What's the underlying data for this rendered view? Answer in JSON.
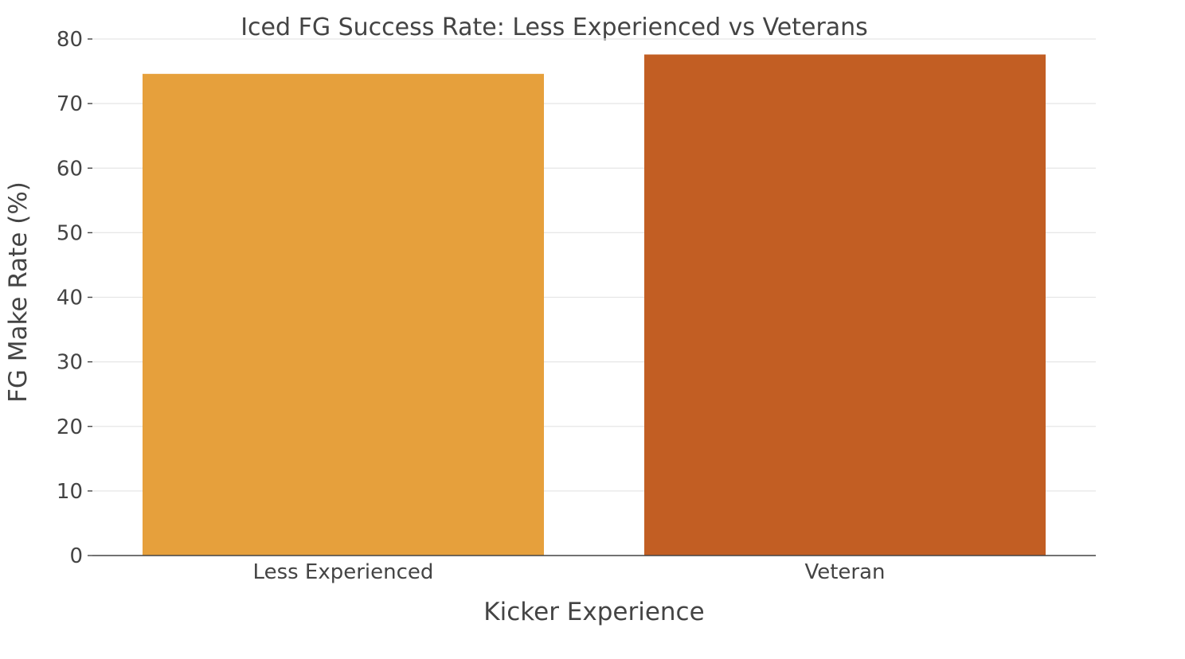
{
  "chart_data": {
    "type": "bar",
    "title": "Iced FG Success Rate: Less Experienced vs Veterans",
    "xlabel": "Kicker Experience",
    "ylabel": "FG Make Rate (%)",
    "categories": [
      "Less Experienced",
      "Veteran"
    ],
    "values": [
      74.6,
      77.6
    ],
    "colors": [
      "#E6A03C",
      "#C25E23"
    ],
    "ylim": [
      0,
      80
    ],
    "yticks": [
      0,
      10,
      20,
      30,
      40,
      50,
      60,
      70,
      80
    ],
    "grid": true,
    "legend": "none"
  }
}
